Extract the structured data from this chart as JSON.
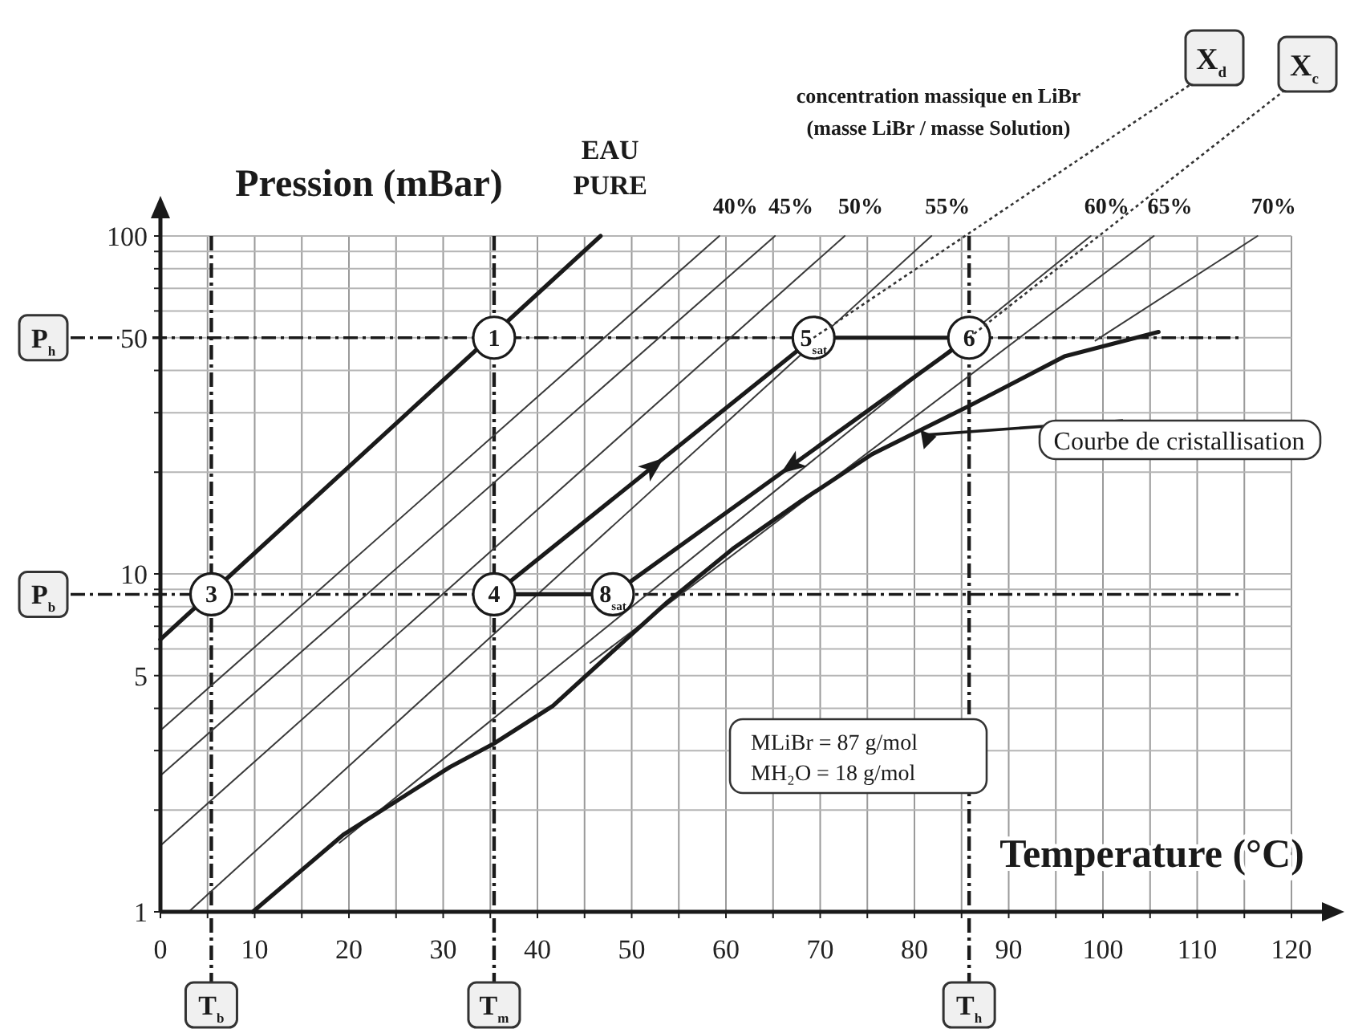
{
  "chart_data": {
    "type": "line",
    "xlabel": "Temperature (°C)",
    "ylabel": "Pression (mBar)",
    "log": "y",
    "grid": true,
    "legend": false,
    "line_style": "solid",
    "xlim": [
      0,
      120
    ],
    "ylim": [
      1,
      100
    ],
    "xticks": [
      0,
      {
        "value": 5,
        "label": null
      },
      10,
      {
        "value": 15,
        "label": null
      },
      20,
      {
        "value": 25,
        "label": null
      },
      30,
      {
        "value": 35,
        "label": null
      },
      40,
      {
        "value": 45,
        "label": null
      },
      50,
      {
        "value": 55,
        "label": null
      },
      60,
      {
        "value": 65,
        "label": null
      },
      70,
      {
        "value": 75,
        "label": null
      },
      80,
      {
        "value": 85,
        "label": null
      },
      90,
      {
        "value": 95,
        "label": null
      },
      100,
      {
        "value": 105,
        "label": null
      },
      110,
      {
        "value": 115,
        "label": null
      },
      120
    ],
    "yticks": [
      1,
      {
        "value": 2,
        "label": null
      },
      {
        "value": 3,
        "label": null
      },
      {
        "value": 4,
        "label": null
      },
      5,
      {
        "value": 6,
        "label": null
      },
      {
        "value": 7,
        "label": null
      },
      {
        "value": 8,
        "label": null
      },
      {
        "value": 9,
        "label": null
      },
      10,
      {
        "value": 20,
        "label": null
      },
      {
        "value": 30,
        "label": null
      },
      {
        "value": 40,
        "label": null
      },
      50,
      {
        "value": 60,
        "label": null
      },
      {
        "value": 70,
        "label": null
      },
      {
        "value": 80,
        "label": null
      },
      {
        "value": 90,
        "label": null
      },
      100
    ],
    "series": [
      {
        "name": "EAU PURE",
        "color": "#1a1a1a",
        "x": [
          0,
          46.7
        ],
        "values": [
          6.4,
          100
        ]
      },
      {
        "name": "40%",
        "color": "#3a3a3a",
        "x": [
          0,
          59.3
        ],
        "values": [
          3.44,
          100
        ]
      },
      {
        "name": "45%",
        "color": "#3a3a3a",
        "x": [
          0,
          65.2
        ],
        "values": [
          2.53,
          100
        ]
      },
      {
        "name": "50%",
        "color": "#3a3a3a",
        "x": [
          0,
          72.6
        ],
        "values": [
          1.57,
          100
        ]
      },
      {
        "name": "55%",
        "color": "#3a3a3a",
        "x": [
          3,
          81.8
        ],
        "values": [
          1,
          100
        ]
      },
      {
        "name": "60%",
        "color": "#3a3a3a",
        "x": [
          19,
          98.7
        ],
        "values": [
          1.6,
          100
        ]
      },
      {
        "name": "65%",
        "color": "#3a3a3a",
        "x": [
          45.6,
          105.4
        ],
        "values": [
          5.45,
          100
        ]
      },
      {
        "name": "70%",
        "color": "#3a3a3a",
        "x": [
          99.2,
          116.4
        ],
        "values": [
          49,
          100
        ]
      },
      {
        "name": "Courbe de cristallisation",
        "color": "#1a1a1a",
        "x": [
          9.8,
          19.4,
          30.7,
          35.4,
          41.6,
          47.2,
          53.8,
          60.7,
          68,
          75.5,
          85.8,
          95.9,
          105.9
        ],
        "values": [
          1,
          1.69,
          2.68,
          3.15,
          4.06,
          5.63,
          8.26,
          11.85,
          16.45,
          22.6,
          31.4,
          44,
          52
        ]
      },
      {
        "color": "#1a1a1a",
        "x": [
          35.4,
          69.3
        ],
        "values": [
          8.7,
          50
        ]
      },
      {
        "color": "#1a1a1a",
        "x": [
          69.3,
          85.8
        ],
        "values": [
          50,
          50
        ]
      },
      {
        "color": "#1a1a1a",
        "x": [
          85.8,
          48
        ],
        "values": [
          50,
          8.7
        ]
      },
      {
        "color": "#1a1a1a",
        "x": [
          48,
          35.4
        ],
        "values": [
          8.7,
          8.7
        ]
      },
      {
        "type": "scatter",
        "marker": "circle",
        "color": "#1a1a1a",
        "x": [
          35.4,
          5.4,
          35.4,
          69.3,
          85.8,
          48
        ],
        "values": [
          50,
          8.7,
          8.7,
          50,
          50,
          8.7
        ]
      }
    ],
    "ref_lines": [
      {
        "axis": "y",
        "value": 50,
        "label": "P$_{h}$",
        "line_style": "dashed",
        "color": "#1a1a1a"
      },
      {
        "axis": "y",
        "value": 8.7,
        "label": "P$_{b}$",
        "line_style": "dashed",
        "color": "#1a1a1a"
      },
      {
        "axis": "x",
        "value": 5.4,
        "label": "T$_{b}$",
        "line_style": "dashed",
        "color": "#1a1a1a"
      },
      {
        "axis": "x",
        "value": 35.4,
        "label": "T$_{m}$",
        "line_style": "dashed",
        "color": "#1a1a1a"
      },
      {
        "axis": "x",
        "value": 85.8,
        "label": "T$_{h}$",
        "line_style": "dashed",
        "color": "#1a1a1a"
      }
    ],
    "annotations": [
      {
        "text": "1",
        "x": 35.4,
        "y": 50
      },
      {
        "text": "3",
        "x": 5.4,
        "y": 8.7
      },
      {
        "text": "4",
        "x": 35.4,
        "y": 8.7
      },
      {
        "text": "5$_{sat}$",
        "x": 69.3,
        "y": 50
      },
      {
        "text": "6",
        "x": 85.8,
        "y": 50
      },
      {
        "text": "8$_{sat}$",
        "x": 48,
        "y": 8.7
      },
      {
        "text": "X$_{d}$",
        "x": 69.3,
        "y": 50
      },
      {
        "text": "X$_{c}$",
        "x": 85.8,
        "y": 50
      },
      "concentration massique en LiBr",
      "(masse LiBr / masse Solution)",
      "MLiBr = 87 g/mol",
      "MH₂O = 18 g/mol"
    ]
  }
}
